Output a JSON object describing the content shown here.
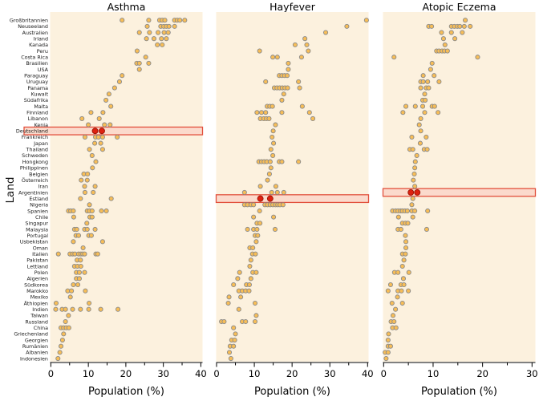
{
  "figure_width": 672,
  "figure_height": 500,
  "y_axis_label": "Land",
  "x_axis_label": "Population (%)",
  "colors": {
    "panel_background": "#fcf1de",
    "dot_fill": "#f7bd57",
    "dot_stroke": "#8a8a8a",
    "highlight_dot_fill": "#de2110",
    "highlight_dot_stroke": "#9b1506",
    "highlight_box_fill": "#fbdacc",
    "highlight_box_border": "#e2503c",
    "axis_color": "#000000",
    "label_color": "#1a1a1a"
  },
  "chart_data": {
    "type": "scatter",
    "layout": "three-panel trellis dot plot, shared y categories, grid off, no legend",
    "y_categories": [
      "Großbritannien",
      "Neuseeland",
      "Australien",
      "Irland",
      "Kanada",
      "Peru",
      "Costa Rica",
      "Brasilien",
      "USA",
      "Paraguay",
      "Uruguay",
      "Panama",
      "Kuwait",
      "Südafrika",
      "Malta",
      "Finnland",
      "Libanon",
      "Kenia",
      "Deutschland",
      "Frankreich",
      "Japan",
      "Thailand",
      "Schweden",
      "Hongkong",
      "Philippinen",
      "Belgien",
      "Österreich",
      "Iran",
      "Argentinien",
      "Estland",
      "Nigeria",
      "Spanien",
      "Chile",
      "Singapur",
      "Malaysia",
      "Portugal",
      "Usbekistan",
      "Oman",
      "Italien",
      "Pakistan",
      "Lettland",
      "Polen",
      "Algerien",
      "Südkorea",
      "Marokko",
      "Mexiko",
      "Äthiopien",
      "Indien",
      "Taiwan",
      "Russland",
      "China",
      "Griechenland",
      "Georgien",
      "Rumänien",
      "Albanien",
      "Indonesien"
    ],
    "panels": [
      {
        "title": "Asthma",
        "xlabel": "Population (%)",
        "xlim": [
          0,
          40
        ],
        "xticks_major": [
          0,
          10,
          20,
          30,
          40
        ],
        "xticks_minor": [
          5,
          15,
          25,
          35
        ],
        "highlight": {
          "row": 19,
          "row_label": "Deutschland",
          "values": [
            11.8,
            13.6
          ],
          "box_includes_label_column": true
        },
        "rows": [
          [
            19.0,
            26.1,
            29.0,
            29.7,
            30.4,
            33.0,
            33.7,
            34.4,
            35.7
          ],
          [
            25.7,
            29.3,
            30.1,
            30.8,
            31.5,
            33.0
          ],
          [
            23.6,
            26.3,
            28.6,
            30.2,
            31.3
          ],
          [
            25.5,
            27.5,
            29.5,
            30.8
          ],
          [
            28.4,
            29.7
          ],
          [
            23.0
          ],
          [
            25.3
          ],
          [
            22.9,
            23.6,
            26.1
          ],
          [
            23.6
          ],
          [
            19.0
          ],
          [
            18.3
          ],
          [
            17.0
          ],
          [
            15.5
          ],
          [
            14.7
          ],
          [
            16.0
          ],
          [
            10.7,
            13.9
          ],
          [
            8.3,
            12.9
          ],
          [
            10.0,
            14.3,
            15.8
          ],
          [],
          [
            9.1,
            11.9,
            12.7,
            13.8,
            17.7
          ],
          [
            11.7,
            13.3
          ],
          [
            10.3,
            13.8
          ],
          [
            11.0
          ],
          [
            12.0
          ],
          [
            11.1
          ],
          [
            8.8,
            9.8
          ],
          [
            8.1,
            9.7
          ],
          [
            9.0,
            11.8
          ],
          [
            9.1,
            11.3
          ],
          [
            7.9,
            16.1
          ],
          [
            10.3
          ],
          [
            4.7,
            5.3,
            6.0,
            9.7,
            10.3,
            11.0,
            13.5,
            14.8
          ],
          [
            6.1,
            10.4,
            11.0
          ],
          [
            9.6
          ],
          [
            6.3,
            6.9,
            9.0,
            9.7,
            11.8
          ],
          [
            6.7,
            7.4,
            10.1,
            10.8
          ],
          [
            6.0,
            13.8
          ],
          [
            8.6
          ],
          [
            2.0,
            5.1,
            5.8,
            6.4,
            7.4,
            8.0,
            8.5,
            9.0,
            12.0,
            12.5
          ],
          [
            7.0,
            7.9
          ],
          [
            6.3,
            7.1,
            8.0
          ],
          [
            6.8,
            7.6,
            9.0
          ],
          [
            6.8,
            7.6
          ],
          [
            6.0,
            7.2
          ],
          [
            4.5,
            5.5,
            9.2
          ],
          [
            5.2
          ],
          [
            1.4,
            10.2
          ],
          [
            1.3,
            3.0,
            3.9,
            5.8,
            7.9,
            10.1,
            13.3,
            17.9
          ],
          [
            4.7
          ],
          [
            3.9
          ],
          [
            2.7,
            3.4,
            4.1,
            4.8
          ],
          [
            3.4
          ],
          [
            3.1
          ],
          [
            2.7
          ],
          [
            2.4
          ],
          [
            1.9
          ]
        ]
      },
      {
        "title": "Hayfever",
        "xlabel": "Population (%)",
        "xlim": [
          0,
          40
        ],
        "xticks_major": [
          0,
          10,
          20,
          30,
          40
        ],
        "xticks_minor": [
          5,
          15,
          25,
          35
        ],
        "highlight": {
          "row": 30,
          "row_label": "Estland",
          "values": [
            11.6,
            14.2
          ],
          "box_includes_label_column": false
        },
        "rows": [
          [
            39.7
          ],
          [
            34.5
          ],
          [
            28.9
          ],
          [
            23.4
          ],
          [
            20.8,
            23.9
          ],
          [
            11.4,
            24.3
          ],
          [
            14.9,
            16.1,
            22.5
          ],
          [
            19.0
          ],
          [
            19.0
          ],
          [
            16.6,
            17.3,
            18.0,
            18.7
          ],
          [
            13.0,
            21.7
          ],
          [
            15.3,
            16.0,
            16.7,
            17.4,
            18.1,
            18.8,
            22.0
          ],
          [
            17.8
          ],
          [
            17.3
          ],
          [
            13.4,
            14.1,
            14.8,
            22.7
          ],
          [
            10.7,
            11.9,
            13.0,
            17.3,
            24.6
          ],
          [
            11.6,
            12.5,
            13.2,
            13.9,
            25.5
          ],
          [
            15.6
          ],
          [
            15.0
          ],
          [
            14.7
          ],
          [
            15.1
          ],
          [
            14.4
          ],
          [
            14.9
          ],
          [
            11.2,
            11.9,
            12.6,
            13.3,
            14.2,
            16.6,
            17.3,
            21.7
          ],
          [
            14.4
          ],
          [
            14.0
          ],
          [
            13.5
          ],
          [
            11.6,
            15.7
          ],
          [
            7.4,
            14.6,
            16.1,
            17.8
          ],
          [],
          [
            7.4,
            8.2,
            9.1,
            9.8,
            12.8,
            13.5,
            14.2,
            14.9,
            15.6,
            16.2,
            16.8,
            17.6
          ],
          [
            11.4
          ],
          [
            9.8,
            15.1
          ],
          [
            10.7,
            11.5
          ],
          [
            8.2,
            9.8,
            10.7,
            15.5
          ],
          [
            10.2,
            10.9
          ],
          [
            10.5
          ],
          [
            8.8,
            9.6
          ],
          [
            9.5,
            10.3
          ],
          [
            9.1
          ],
          [
            8.8
          ],
          [
            6.1,
            9.6,
            10.5
          ],
          [
            5.6,
            9.1
          ],
          [
            4.5,
            7.9,
            8.7
          ],
          [
            5.9,
            6.8,
            7.7,
            8.6
          ],
          [
            3.3,
            6.4
          ],
          [
            3.1,
            10.2
          ],
          [
            5.9
          ],
          [
            10.5
          ],
          [
            1.3,
            2.0,
            6.8,
            7.7,
            10.2
          ],
          [
            4.5
          ],
          [
            5.0
          ],
          [
            4.0,
            4.8
          ],
          [
            3.6,
            4.5
          ],
          [
            3.4
          ],
          [
            3.8
          ]
        ]
      },
      {
        "title": "Atopic Eczema",
        "xlabel": "Population (%)",
        "xlim": [
          0,
          30
        ],
        "xticks_major": [
          0,
          10,
          20,
          30
        ],
        "xticks_minor": [
          5,
          15,
          25
        ],
        "highlight": {
          "row": 29,
          "row_label": "Argentinien",
          "values": [
            5.5,
            6.8
          ],
          "box_includes_label_column": false
        },
        "rows": [
          [
            16.5
          ],
          [
            9.1,
            9.7,
            13.7,
            14.3,
            14.9,
            15.4,
            16.3,
            17.5
          ],
          [
            11.7,
            13.7,
            15.9
          ],
          [
            12.1,
            14.4
          ],
          [
            12.4
          ],
          [
            10.7,
            11.2,
            11.8,
            12.3,
            12.9
          ],
          [
            2.1,
            19.0
          ],
          [
            9.8
          ],
          [
            9.5
          ],
          [
            8.0,
            10.2
          ],
          [
            7.5,
            8.0,
            8.9,
            11.2
          ],
          [
            7.5,
            8.6,
            9.1
          ],
          [
            8.3
          ],
          [
            7.9,
            8.4
          ],
          [
            4.5,
            6.4,
            7.9,
            9.8,
            10.3
          ],
          [
            3.9,
            8.3,
            11.0
          ],
          [
            7.5
          ],
          [
            7.2
          ],
          [
            7.5
          ],
          [
            5.7,
            8.6
          ],
          [
            7.4
          ],
          [
            5.3,
            5.9,
            8.2,
            8.8
          ],
          [
            6.7
          ],
          [
            6.4
          ],
          [
            6.3
          ],
          [
            6.2
          ],
          [
            6.0
          ],
          [
            6.3
          ],
          [],
          [
            5.9
          ],
          [
            5.7
          ],
          [
            1.8,
            2.4,
            2.9,
            3.4,
            3.8,
            4.3,
            4.8,
            5.7,
            6.3,
            8.9
          ],
          [
            3.0,
            5.9
          ],
          [
            3.8,
            4.4,
            4.9
          ],
          [
            2.9,
            3.5,
            8.7
          ],
          [
            4.4
          ],
          [
            4.5
          ],
          [
            4.5
          ],
          [
            3.8,
            4.4
          ],
          [
            4.1
          ],
          [
            3.8
          ],
          [
            2.2,
            2.9,
            5.1
          ],
          [
            4.0
          ],
          [
            1.4,
            3.5,
            4.1
          ],
          [
            0.9,
            2.9,
            3.6,
            5.0
          ],
          [
            2.8
          ],
          [
            1.7,
            3.8
          ],
          [
            2.4
          ],
          [
            1.9
          ],
          [
            1.5,
            2.1
          ],
          [
            1.8,
            2.5
          ],
          [
            1.0
          ],
          [
            0.9
          ],
          [
            0.9,
            1.4
          ],
          [
            0.3,
            0.9
          ],
          [
            0.5
          ]
        ]
      }
    ]
  }
}
